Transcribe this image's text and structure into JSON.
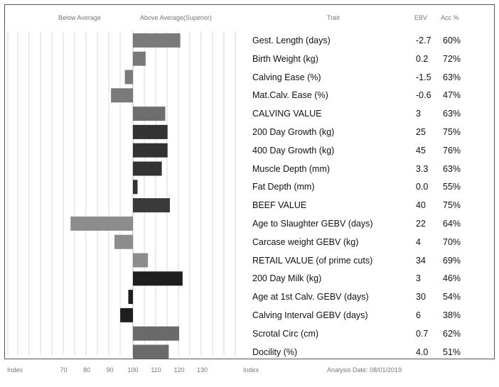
{
  "headers": {
    "below": "Below Average",
    "above": "Above Average(Superior)",
    "trait": "Trait",
    "ebv": "EBV",
    "acc": "Acc %"
  },
  "footer": {
    "index_left": "Index",
    "index_right": "Index",
    "analysis_date": "Analysis Date:  08/01/2019"
  },
  "chart_data": {
    "type": "bar",
    "orientation": "horizontal",
    "baseline": 100,
    "xlim": [
      66,
      136
    ],
    "ticks": [
      70,
      80,
      90,
      100,
      110,
      120,
      130
    ],
    "tick_labels": [
      "70",
      "80",
      "90",
      "100",
      "110",
      "120",
      "130"
    ],
    "rows": [
      {
        "trait": "Gest. Length (days)",
        "ebv": "-2.7",
        "acc": "60%",
        "index": 120.5,
        "shade": "#7a7a7a"
      },
      {
        "trait": "Birth Weight (kg)",
        "ebv": "0.2",
        "acc": "72%",
        "index": 105.5,
        "shade": "#7a7a7a"
      },
      {
        "trait": "Calving Ease (%)",
        "ebv": "-1.5",
        "acc": "63%",
        "index": 96.5,
        "shade": "#7a7a7a"
      },
      {
        "trait": "Mat.Calv. Ease (%)",
        "ebv": "-0.6",
        "acc": "47%",
        "index": 90.5,
        "shade": "#7a7a7a"
      },
      {
        "trait": "CALVING VALUE",
        "ebv": "3",
        "acc": "63%",
        "index": 114.0,
        "shade": "#6e6e6e"
      },
      {
        "trait": "200 Day Growth (kg)",
        "ebv": "25",
        "acc": "75%",
        "index": 115.0,
        "shade": "#333333"
      },
      {
        "trait": "400 Day Growth (kg)",
        "ebv": "45",
        "acc": "76%",
        "index": 115.0,
        "shade": "#333333"
      },
      {
        "trait": "Muscle Depth (mm)",
        "ebv": "3.3",
        "acc": "63%",
        "index": 112.5,
        "shade": "#333333"
      },
      {
        "trait": "Fat Depth (mm)",
        "ebv": "0.0",
        "acc": "55%",
        "index": 102.0,
        "shade": "#333333"
      },
      {
        "trait": "BEEF VALUE",
        "ebv": "40",
        "acc": "75%",
        "index": 116.0,
        "shade": "#3a3a3a"
      },
      {
        "trait": "Age to Slaughter GEBV (days)",
        "ebv": "22",
        "acc": "64%",
        "index": 73.0,
        "shade": "#8c8c8c"
      },
      {
        "trait": "Carcase weight GEBV (kg)",
        "ebv": "4",
        "acc": "70%",
        "index": 92.0,
        "shade": "#8c8c8c"
      },
      {
        "trait": "RETAIL VALUE (of prime cuts)",
        "ebv": "34",
        "acc": "69%",
        "index": 106.5,
        "shade": "#8c8c8c"
      },
      {
        "trait": "200 Day Milk (kg)",
        "ebv": "3",
        "acc": "46%",
        "index": 121.5,
        "shade": "#1e1e1e"
      },
      {
        "trait": "Age at 1st Calv. GEBV (days)",
        "ebv": "30",
        "acc": "54%",
        "index": 98.0,
        "shade": "#1e1e1e"
      },
      {
        "trait": "Calving Interval GEBV (days)",
        "ebv": "6",
        "acc": "38%",
        "index": 94.5,
        "shade": "#1e1e1e"
      },
      {
        "trait": "Scrotal Circ (cm)",
        "ebv": "0.7",
        "acc": "62%",
        "index": 120.0,
        "shade": "#6a6a6a"
      },
      {
        "trait": "Docility (%)",
        "ebv": "4.0",
        "acc": "51%",
        "index": 115.5,
        "shade": "#6a6a6a"
      }
    ]
  }
}
